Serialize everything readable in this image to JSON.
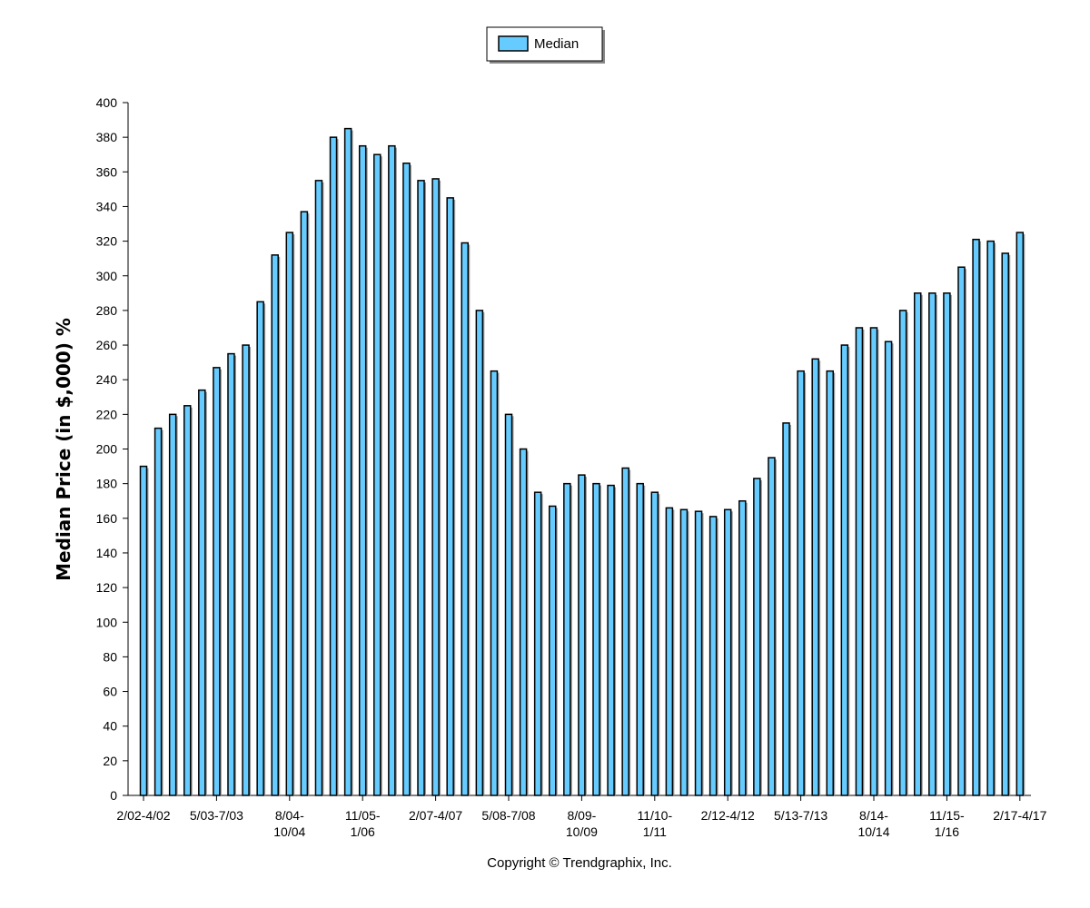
{
  "chart_data": {
    "type": "bar",
    "ylabel": "Median Price (in $,000) %",
    "ylim": [
      0,
      400
    ],
    "yticks": [
      0,
      20,
      40,
      60,
      80,
      100,
      120,
      140,
      160,
      180,
      200,
      220,
      240,
      260,
      280,
      300,
      320,
      340,
      360,
      380,
      400
    ],
    "grid": false,
    "legend_position": "top-center",
    "series": [
      {
        "name": "Median",
        "color": "#66ccff",
        "values": [
          190,
          212,
          220,
          225,
          234,
          247,
          255,
          260,
          285,
          312,
          325,
          337,
          355,
          380,
          385,
          375,
          370,
          375,
          365,
          355,
          356,
          345,
          319,
          280,
          245,
          220,
          200,
          175,
          167,
          180,
          185,
          180,
          179,
          189,
          180,
          175,
          166,
          165,
          164,
          161,
          165,
          170,
          183,
          195,
          215,
          245,
          252,
          245,
          260,
          270,
          270,
          262,
          280,
          290,
          290,
          290,
          305,
          321,
          320,
          313,
          325
        ]
      }
    ],
    "x_tick_labels": [
      {
        "index": 0,
        "lines": [
          "2/02-4/02"
        ]
      },
      {
        "index": 5,
        "lines": [
          "5/03-7/03"
        ]
      },
      {
        "index": 10,
        "lines": [
          "8/04-",
          "10/04"
        ]
      },
      {
        "index": 15,
        "lines": [
          "11/05-",
          "1/06"
        ]
      },
      {
        "index": 20,
        "lines": [
          "2/07-4/07"
        ]
      },
      {
        "index": 25,
        "lines": [
          "5/08-7/08"
        ]
      },
      {
        "index": 30,
        "lines": [
          "8/09-",
          "10/09"
        ]
      },
      {
        "index": 35,
        "lines": [
          "11/10-",
          "1/11"
        ]
      },
      {
        "index": 40,
        "lines": [
          "2/12-4/12"
        ]
      },
      {
        "index": 45,
        "lines": [
          "5/13-7/13"
        ]
      },
      {
        "index": 50,
        "lines": [
          "8/14-",
          "10/14"
        ]
      },
      {
        "index": 55,
        "lines": [
          "11/15-",
          "1/16"
        ]
      },
      {
        "index": 60,
        "lines": [
          "2/17-4/17"
        ]
      }
    ]
  },
  "legend": {
    "label": "Median"
  },
  "footer": {
    "copyright": "Copyright © Trendgraphix, Inc."
  }
}
